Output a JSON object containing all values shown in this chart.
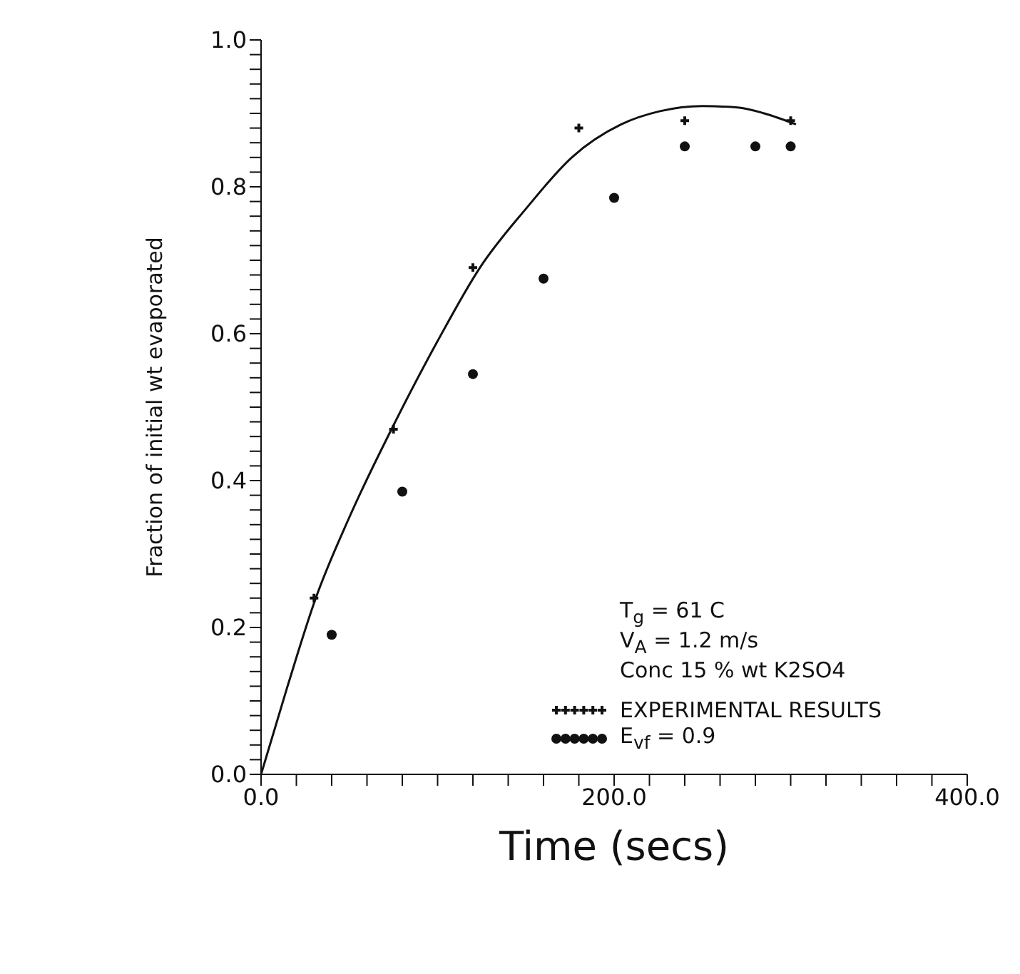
{
  "chart_data": {
    "type": "scatter",
    "xlabel": "Time (secs)",
    "ylabel": "Fraction of initial wt evaporated",
    "xlim": [
      0,
      400
    ],
    "ylim": [
      0,
      1.0
    ],
    "xticks": [
      {
        "value": 0,
        "label": "0.0"
      },
      {
        "value": 20,
        "label": null
      },
      {
        "value": 40,
        "label": null
      },
      {
        "value": 60,
        "label": null
      },
      {
        "value": 80,
        "label": null
      },
      {
        "value": 100,
        "label": null
      },
      {
        "value": 120,
        "label": null
      },
      {
        "value": 140,
        "label": null
      },
      {
        "value": 160,
        "label": null
      },
      {
        "value": 180,
        "label": null
      },
      {
        "value": 200,
        "label": "200.0"
      },
      {
        "value": 220,
        "label": null
      },
      {
        "value": 240,
        "label": null
      },
      {
        "value": 260,
        "label": null
      },
      {
        "value": 280,
        "label": null
      },
      {
        "value": 300,
        "label": null
      },
      {
        "value": 320,
        "label": null
      },
      {
        "value": 340,
        "label": null
      },
      {
        "value": 360,
        "label": null
      },
      {
        "value": 380,
        "label": null
      },
      {
        "value": 400,
        "label": "400.0"
      }
    ],
    "yticks": [
      {
        "value": 0,
        "label": "0.0"
      },
      {
        "value": 0.02,
        "label": null
      },
      {
        "value": 0.04,
        "label": null
      },
      {
        "value": 0.06,
        "label": null
      },
      {
        "value": 0.08,
        "label": null
      },
      {
        "value": 0.1,
        "label": null
      },
      {
        "value": 0.12,
        "label": null
      },
      {
        "value": 0.14,
        "label": null
      },
      {
        "value": 0.16,
        "label": null
      },
      {
        "value": 0.18,
        "label": null
      },
      {
        "value": 0.2,
        "label": "0.2"
      },
      {
        "value": 0.22,
        "label": null
      },
      {
        "value": 0.24,
        "label": null
      },
      {
        "value": 0.26,
        "label": null
      },
      {
        "value": 0.28,
        "label": null
      },
      {
        "value": 0.3,
        "label": null
      },
      {
        "value": 0.32,
        "label": null
      },
      {
        "value": 0.34,
        "label": null
      },
      {
        "value": 0.36,
        "label": null
      },
      {
        "value": 0.38,
        "label": null
      },
      {
        "value": 0.4,
        "label": "0.4"
      },
      {
        "value": 0.42,
        "label": null
      },
      {
        "value": 0.44,
        "label": null
      },
      {
        "value": 0.46,
        "label": null
      },
      {
        "value": 0.48,
        "label": null
      },
      {
        "value": 0.5,
        "label": null
      },
      {
        "value": 0.52,
        "label": null
      },
      {
        "value": 0.54,
        "label": null
      },
      {
        "value": 0.56,
        "label": null
      },
      {
        "value": 0.58,
        "label": null
      },
      {
        "value": 0.6,
        "label": "0.6"
      },
      {
        "value": 0.62,
        "label": null
      },
      {
        "value": 0.64,
        "label": null
      },
      {
        "value": 0.66,
        "label": null
      },
      {
        "value": 0.68,
        "label": null
      },
      {
        "value": 0.7,
        "label": null
      },
      {
        "value": 0.72,
        "label": null
      },
      {
        "value": 0.74,
        "label": null
      },
      {
        "value": 0.76,
        "label": null
      },
      {
        "value": 0.78,
        "label": null
      },
      {
        "value": 0.8,
        "label": "0.8"
      },
      {
        "value": 0.82,
        "label": null
      },
      {
        "value": 0.84,
        "label": null
      },
      {
        "value": 0.86,
        "label": null
      },
      {
        "value": 0.88,
        "label": null
      },
      {
        "value": 0.9,
        "label": null
      },
      {
        "value": 0.92,
        "label": null
      },
      {
        "value": 0.94,
        "label": null
      },
      {
        "value": 0.96,
        "label": null
      },
      {
        "value": 0.98,
        "label": null
      },
      {
        "value": 1.0,
        "label": "1.0"
      }
    ],
    "grid": false,
    "legend": "bottom right",
    "annotations": [
      "T$_{g}$ = 61 C",
      "V$_{A}$ = 1.2 m/s",
      "Conc 15 % wt K2SO4"
    ],
    "series": [
      {
        "name": "EXPERIMENTAL RESULTS",
        "marker": "cross",
        "color": "#111111",
        "x": [
          30,
          75,
          120,
          180,
          240,
          300
        ],
        "values": [
          0.24,
          0.47,
          0.69,
          0.88,
          0.89,
          0.89
        ]
      },
      {
        "type": "line",
        "marker": "none",
        "color": "#111111",
        "x": [
          0,
          15,
          31,
          50,
          76,
          100,
          124,
          150,
          176,
          204,
          226,
          250,
          270,
          285,
          303
        ],
        "values": [
          0,
          0.12,
          0.24,
          0.35,
          0.48,
          0.59,
          0.69,
          0.77,
          0.84,
          0.885,
          0.903,
          0.91,
          0.908,
          0.9,
          0.885
        ]
      },
      {
        "name": "E$_{vf}$ = 0.9",
        "marker": "circle",
        "color": "#111111",
        "x": [
          40,
          80,
          120,
          160,
          200,
          240,
          280,
          300
        ],
        "values": [
          0.19,
          0.385,
          0.545,
          0.675,
          0.785,
          0.855,
          0.855,
          0.855
        ]
      }
    ]
  }
}
